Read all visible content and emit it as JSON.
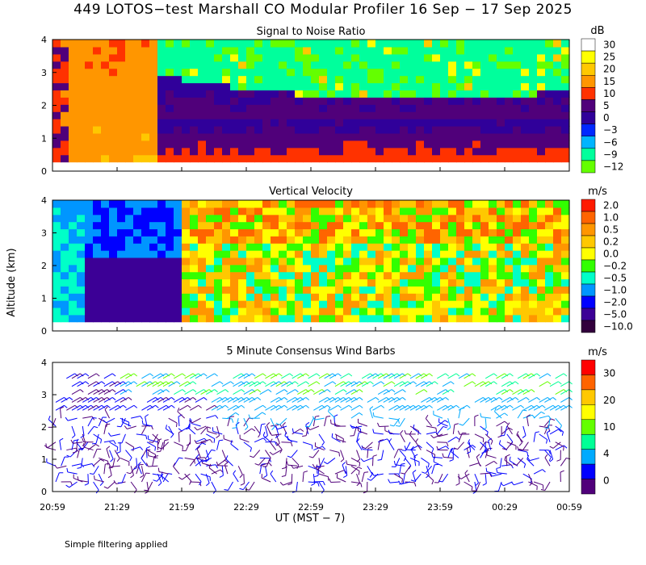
{
  "title": "449 LOTOS−test Marshall CO Modular Profiler 16 Sep − 17 Sep 2025",
  "footnote": "Simple filtering applied",
  "ylabel": "Altitude (km)",
  "xlabel": "UT  (MST − 7)",
  "chart_data": [
    {
      "type": "heatmap",
      "title": "Signal to Noise Ratio",
      "unit": "dB",
      "x_ticks": [
        "20:59",
        "21:29",
        "21:59",
        "22:29",
        "22:59",
        "23:29",
        "23:59",
        "00:29",
        "00:59"
      ],
      "y_ticks": [
        "0",
        "1",
        "2",
        "3",
        "4"
      ],
      "ylim": [
        0,
        4
      ],
      "colorbar": {
        "labels": [
          "30",
          "25",
          "20",
          "15",
          "10",
          "5",
          "0",
          "−3",
          "−6",
          "−9",
          "−12"
        ],
        "colors": [
          "#ffffff",
          "#ffff00",
          "#ffc800",
          "#ff9600",
          "#ff3200",
          "#50007a",
          "#30009a",
          "#0028ff",
          "#00b4ff",
          "#00ff9c",
          "#64ff00"
        ]
      }
    },
    {
      "type": "heatmap",
      "title": "Vertical Velocity",
      "unit": "m/s",
      "x_ticks": [
        "20:59",
        "21:29",
        "21:59",
        "22:29",
        "22:59",
        "23:29",
        "23:59",
        "00:29",
        "00:59"
      ],
      "y_ticks": [
        "0",
        "1",
        "2",
        "3",
        "4"
      ],
      "ylim": [
        0,
        4
      ],
      "colorbar": {
        "labels": [
          "2.0",
          "1.0",
          "0.5",
          "0.2",
          "0.0",
          "−0.2",
          "−0.5",
          "−1.0",
          "−2.0",
          "−5.0",
          "−10.0"
        ],
        "colors": [
          "#ff1a00",
          "#ff6400",
          "#ff9600",
          "#ffc800",
          "#ffff00",
          "#32ff00",
          "#00ffc8",
          "#0096ff",
          "#0000ff",
          "#3c0096",
          "#32003c"
        ]
      }
    },
    {
      "type": "scatter",
      "title": "5 Minute Consensus Wind Barbs",
      "unit": "m/s",
      "x_ticks": [
        "20:59",
        "21:29",
        "21:59",
        "22:29",
        "22:59",
        "23:29",
        "23:59",
        "00:29",
        "00:59"
      ],
      "y_ticks": [
        "0",
        "1",
        "2",
        "3",
        "4"
      ],
      "ylim": [
        0,
        4
      ],
      "colorbar": {
        "labels": [
          "30",
          "20",
          "10",
          "4",
          "0"
        ],
        "colors": [
          "#ff0000",
          "#ff6400",
          "#ffc800",
          "#ffff00",
          "#64ff00",
          "#00ff96",
          "#00aaff",
          "#0000ff",
          "#50007a"
        ]
      }
    }
  ]
}
